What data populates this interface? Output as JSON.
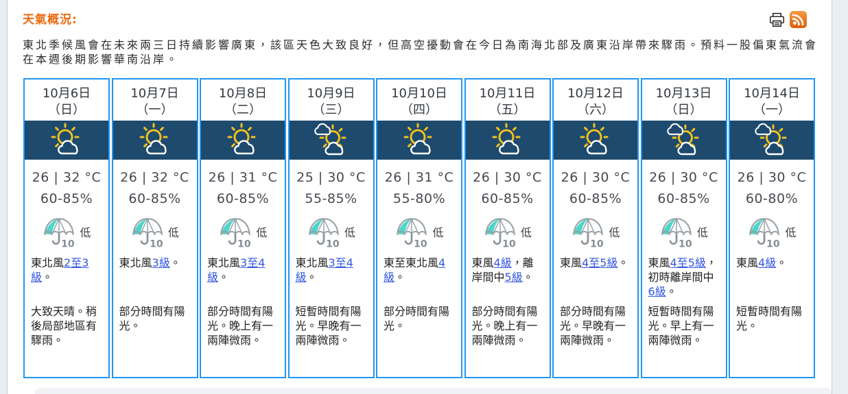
{
  "header": {
    "title": "天氣概況:",
    "print_icon": "print-icon",
    "rss_icon": "rss-icon"
  },
  "summary": "東北季候風會在未來兩三日持續影響廣東，該區天色大致良好，但高空擾動會在今日為南海北部及廣東沿岸帶來驟雨。預料一股偏東氣流會在本週後期影響華南沿岸。",
  "colors": {
    "accent_orange": "#ED6A0F",
    "card_border_blue": "#2196F3",
    "icon_band_navy": "#1E4A6D",
    "link_blue": "#3457E0",
    "psr_teal": "#4ED6C8",
    "sun_yellow": "#F0C11E"
  },
  "forecast": [
    {
      "date": "10月6日",
      "weekday": "（日）",
      "icon": "sun-with-cloud",
      "temperature": "26 | 32 °C",
      "humidity": "60-85%",
      "psr_value": "10",
      "psr_label": "低",
      "wind": [
        {
          "t": "東北風"
        },
        {
          "t": "2至3級",
          "link": true
        },
        {
          "t": "。"
        }
      ],
      "description": "大致天晴。稍後局部地區有驟雨。"
    },
    {
      "date": "10月7日",
      "weekday": "（一）",
      "icon": "sun-with-cloud",
      "temperature": "26 | 32 °C",
      "humidity": "60-85%",
      "psr_value": "10",
      "psr_label": "低",
      "wind": [
        {
          "t": "東北風"
        },
        {
          "t": "3級",
          "link": true
        },
        {
          "t": "。"
        }
      ],
      "description": "部分時間有陽光。"
    },
    {
      "date": "10月8日",
      "weekday": "（二）",
      "icon": "sun-with-cloud",
      "temperature": "26 | 31 °C",
      "humidity": "60-85%",
      "psr_value": "10",
      "psr_label": "低",
      "wind": [
        {
          "t": "東北風"
        },
        {
          "t": "3至4級",
          "link": true
        },
        {
          "t": "。"
        }
      ],
      "description": "部分時間有陽光。晚上有一兩陣微雨。"
    },
    {
      "date": "10月9日",
      "weekday": "（三）",
      "icon": "clouds-with-sun",
      "temperature": "25 | 30 °C",
      "humidity": "55-85%",
      "psr_value": "10",
      "psr_label": "低",
      "wind": [
        {
          "t": "東北風"
        },
        {
          "t": "3至4級",
          "link": true
        },
        {
          "t": "。"
        }
      ],
      "description": "短暫時間有陽光。早晚有一兩陣微雨。"
    },
    {
      "date": "10月10日",
      "weekday": "（四）",
      "icon": "sun-with-cloud",
      "temperature": "26 | 31 °C",
      "humidity": "55-80%",
      "psr_value": "10",
      "psr_label": "低",
      "wind": [
        {
          "t": "東至東北風"
        },
        {
          "t": "4級",
          "link": true
        },
        {
          "t": "。"
        }
      ],
      "description": "部分時間有陽光。"
    },
    {
      "date": "10月11日",
      "weekday": "（五）",
      "icon": "sun-with-cloud",
      "temperature": "26 | 30 °C",
      "humidity": "60-85%",
      "psr_value": "10",
      "psr_label": "低",
      "wind": [
        {
          "t": "東風"
        },
        {
          "t": "4級",
          "link": true
        },
        {
          "t": "，離岸間中"
        },
        {
          "t": "5級",
          "link": true
        },
        {
          "t": "。"
        }
      ],
      "description": "部分時間有陽光。晚上有一兩陣微雨。"
    },
    {
      "date": "10月12日",
      "weekday": "（六）",
      "icon": "sun-with-cloud",
      "temperature": "26 | 30 °C",
      "humidity": "60-85%",
      "psr_value": "10",
      "psr_label": "低",
      "wind": [
        {
          "t": "東風"
        },
        {
          "t": "4至5級",
          "link": true
        },
        {
          "t": "。"
        }
      ],
      "description": "部分時間有陽光。早晚有一兩陣微雨。"
    },
    {
      "date": "10月13日",
      "weekday": "（日）",
      "icon": "clouds-with-sun",
      "temperature": "26 | 30 °C",
      "humidity": "60-85%",
      "psr_value": "10",
      "psr_label": "低",
      "wind": [
        {
          "t": "東風"
        },
        {
          "t": "4至5級",
          "link": true
        },
        {
          "t": "，初時離岸間中"
        },
        {
          "t": "6級",
          "link": true
        },
        {
          "t": "。"
        }
      ],
      "description": "短暫時間有陽光。早上有一兩陣微雨。"
    },
    {
      "date": "10月14日",
      "weekday": "（一）",
      "icon": "clouds-with-sun",
      "temperature": "26 | 30 °C",
      "humidity": "60-80%",
      "psr_value": "10",
      "psr_label": "低",
      "wind": [
        {
          "t": "東風"
        },
        {
          "t": "4級",
          "link": true
        },
        {
          "t": "。"
        }
      ],
      "description": "短暫時間有陽光。"
    }
  ]
}
